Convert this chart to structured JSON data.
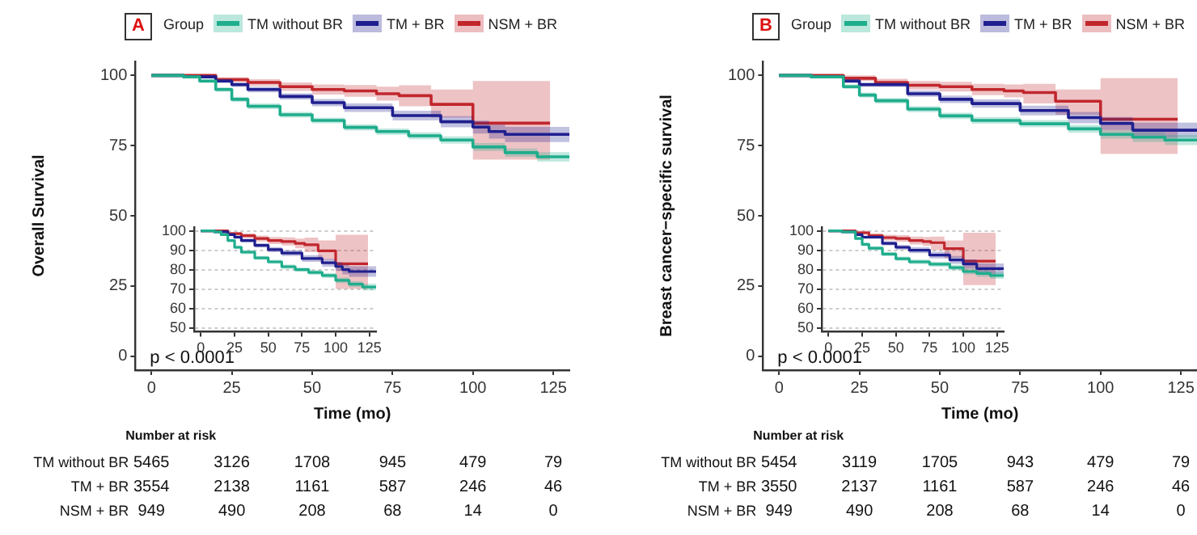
{
  "chart_data": [
    {
      "type": "step",
      "title": "A",
      "xlabel": "Time (mo)",
      "ylabel": "Overall Survival",
      "legend_title": "Group",
      "legend": "top",
      "grid": false,
      "annotations": [
        "p < 0.0001"
      ],
      "xlim": [
        -5,
        130
      ],
      "xticks": [
        0,
        25,
        50,
        75,
        100,
        125
      ],
      "ylim": [
        -5,
        105
      ],
      "yticks": [
        0,
        25,
        50,
        75,
        100
      ],
      "series": [
        {
          "name": "TM without BR",
          "color": "#1fae8c",
          "x": [
            0,
            10,
            15,
            20,
            25,
            30,
            40,
            50,
            60,
            70,
            80,
            90,
            100,
            110,
            120,
            130
          ],
          "values": [
            100,
            99.5,
            98,
            95,
            91.5,
            89,
            86,
            84,
            81.5,
            80,
            78.5,
            77,
            74.5,
            72.5,
            71,
            70.5
          ],
          "lower": [
            100,
            99,
            97.3,
            94.2,
            90.6,
            88,
            85,
            83,
            80.4,
            78.9,
            77.3,
            75.7,
            73.1,
            71,
            69.3,
            68.6
          ],
          "upper": [
            100,
            100,
            98.7,
            95.8,
            92.4,
            90,
            87,
            85,
            82.6,
            81.1,
            79.7,
            78.3,
            75.9,
            74,
            72.7,
            72.4
          ]
        },
        {
          "name": "TM + BR",
          "color": "#1f1f8f",
          "x": [
            0,
            10,
            20,
            25,
            30,
            40,
            50,
            60,
            75,
            90,
            100,
            105,
            110,
            130
          ],
          "values": [
            100,
            99.5,
            98,
            96.7,
            95,
            92.5,
            90.3,
            88.5,
            85.7,
            83.5,
            81.6,
            80,
            79,
            79
          ],
          "lower": [
            100,
            99,
            97.3,
            95.9,
            94,
            91.4,
            89,
            87,
            84,
            81.5,
            79.3,
            77.5,
            76.3,
            76.3
          ],
          "upper": [
            100,
            100,
            98.7,
            97.5,
            96,
            93.6,
            91.6,
            90,
            87.4,
            85.5,
            83.9,
            82.5,
            81.7,
            81.7
          ]
        },
        {
          "name": "NSM + BR",
          "color": "#c1272d",
          "x": [
            0,
            20,
            30,
            40,
            50,
            60,
            70,
            77,
            87,
            100,
            124
          ],
          "values": [
            100,
            98.5,
            97.5,
            96,
            95,
            94.5,
            93.5,
            92.8,
            89.7,
            83,
            83
          ],
          "lower": [
            100,
            97.6,
            96.3,
            94.5,
            93.2,
            92.4,
            91,
            89,
            85,
            70,
            70
          ],
          "upper": [
            100,
            99.4,
            98.7,
            97.5,
            96.8,
            96.6,
            96,
            96.5,
            95,
            98,
            98
          ]
        }
      ]
    },
    {
      "type": "step",
      "grid": "y",
      "xlim": [
        -5,
        130
      ],
      "xticks": [
        0,
        25,
        50,
        75,
        100,
        125
      ],
      "ylim": [
        48,
        102
      ],
      "yticks": [
        50,
        60,
        70,
        80,
        90,
        100
      ],
      "series": [
        {
          "color": "#1fae8c",
          "x": [
            0,
            10,
            15,
            20,
            25,
            30,
            40,
            50,
            60,
            70,
            80,
            90,
            100,
            110,
            120,
            130
          ],
          "values": [
            100,
            99.5,
            98,
            95,
            91.5,
            89,
            86,
            84,
            81.5,
            80,
            78.5,
            77,
            74.5,
            72.5,
            71,
            70.5
          ],
          "lower": [
            100,
            99,
            97.3,
            94.2,
            90.6,
            88,
            85,
            83,
            80.4,
            78.9,
            77.3,
            75.7,
            73.1,
            71,
            69.3,
            68.6
          ],
          "upper": [
            100,
            100,
            98.7,
            95.8,
            92.4,
            90,
            87,
            85,
            82.6,
            81.1,
            79.7,
            78.3,
            75.9,
            74,
            72.7,
            72.4
          ]
        },
        {
          "color": "#1f1f8f",
          "x": [
            0,
            10,
            20,
            25,
            30,
            40,
            50,
            60,
            75,
            90,
            100,
            105,
            110,
            130
          ],
          "values": [
            100,
            99.5,
            98,
            96.7,
            95,
            92.5,
            90.3,
            88.5,
            85.7,
            83.5,
            81.6,
            80,
            79,
            79
          ],
          "lower": [
            100,
            99,
            97.3,
            95.9,
            94,
            91.4,
            89,
            87,
            84,
            81.5,
            79.3,
            77.5,
            76.3,
            76.3
          ],
          "upper": [
            100,
            100,
            98.7,
            97.5,
            96,
            93.6,
            91.6,
            90,
            87.4,
            85.5,
            83.9,
            82.5,
            81.7,
            81.7
          ]
        },
        {
          "color": "#c1272d",
          "x": [
            0,
            20,
            30,
            40,
            50,
            60,
            70,
            77,
            87,
            100,
            124
          ],
          "values": [
            100,
            98.5,
            97.5,
            96,
            95,
            94.5,
            93.5,
            92.8,
            89.7,
            83,
            83
          ],
          "lower": [
            100,
            97.6,
            96.3,
            94.5,
            93.2,
            92.4,
            91,
            89,
            85,
            70,
            70
          ],
          "upper": [
            100,
            99.4,
            98.7,
            97.5,
            96.8,
            96.6,
            96,
            96.5,
            95,
            98,
            98
          ]
        }
      ]
    },
    {
      "type": "other",
      "title": "Number at risk",
      "annotations": [
        "TM without BR",
        "5465",
        "3126",
        "1708",
        "945",
        "479",
        "79",
        "TM + BR",
        "3554",
        "2138",
        "1161",
        "587",
        "246",
        "46",
        "NSM + BR",
        "949",
        "490",
        "208",
        "68",
        "14",
        "0"
      ]
    },
    {
      "type": "step",
      "title": "B",
      "xlabel": "Time (mo)",
      "ylabel": "Breast cancer−specific survival",
      "legend_title": "Group",
      "legend": "top",
      "grid": false,
      "annotations": [
        "p < 0.0001"
      ],
      "xlim": [
        -5,
        130
      ],
      "xticks": [
        0,
        25,
        50,
        75,
        100,
        125
      ],
      "ylim": [
        -5,
        105
      ],
      "yticks": [
        0,
        25,
        50,
        75,
        100
      ],
      "series": [
        {
          "name": "TM without BR",
          "color": "#1fae8c",
          "x": [
            0,
            10,
            20,
            25,
            30,
            40,
            50,
            60,
            75,
            90,
            100,
            110,
            120,
            130
          ],
          "values": [
            100,
            99.5,
            96,
            93,
            91,
            88,
            85.6,
            84,
            82.8,
            81,
            79,
            78,
            77,
            76.5
          ],
          "lower": [
            100,
            99,
            95.2,
            92.1,
            90,
            86.9,
            84.5,
            82.8,
            81.5,
            79.6,
            77.5,
            76.3,
            75.2,
            74.6
          ],
          "upper": [
            100,
            100,
            96.8,
            93.9,
            92,
            89.1,
            86.7,
            85.2,
            84.1,
            82.4,
            80.5,
            79.7,
            78.8,
            78.4
          ]
        },
        {
          "name": "TM + BR",
          "color": "#1f1f8f",
          "x": [
            0,
            10,
            20,
            25,
            40,
            50,
            60,
            75,
            90,
            100,
            110,
            130
          ],
          "values": [
            100,
            99.5,
            98,
            96.7,
            93.5,
            91.5,
            90,
            87.5,
            85,
            82.9,
            80.5,
            80.5
          ],
          "lower": [
            100,
            99,
            97.3,
            95.9,
            92.4,
            90.2,
            88.5,
            85.8,
            83,
            80.6,
            77.8,
            77.8
          ],
          "upper": [
            100,
            100,
            98.7,
            97.5,
            94.6,
            92.8,
            91.5,
            89.2,
            87,
            85.2,
            83.2,
            83.2
          ]
        },
        {
          "name": "NSM + BR",
          "color": "#c1272d",
          "x": [
            0,
            20,
            30,
            40,
            50,
            60,
            70,
            76,
            86,
            100,
            124
          ],
          "values": [
            100,
            99,
            97.5,
            96.5,
            96,
            95,
            94.5,
            93.9,
            90.8,
            84.4,
            84.4
          ],
          "lower": [
            100,
            98,
            96.2,
            95,
            94.3,
            93,
            92.2,
            90,
            86,
            72,
            72
          ],
          "upper": [
            100,
            100,
            98.8,
            98,
            97.7,
            97,
            96.8,
            97,
            95,
            99,
            99
          ]
        }
      ]
    },
    {
      "type": "step",
      "grid": "y",
      "xlim": [
        -5,
        130
      ],
      "xticks": [
        0,
        25,
        50,
        75,
        100,
        125
      ],
      "ylim": [
        48,
        102
      ],
      "yticks": [
        50,
        60,
        70,
        80,
        90,
        100
      ],
      "series": [
        {
          "color": "#1fae8c",
          "x": [
            0,
            10,
            20,
            25,
            30,
            40,
            50,
            60,
            75,
            90,
            100,
            110,
            120,
            130
          ],
          "values": [
            100,
            99.5,
            96,
            93,
            91,
            88,
            85.6,
            84,
            82.8,
            81,
            79,
            78,
            77,
            76.5
          ],
          "lower": [
            100,
            99,
            95.2,
            92.1,
            90,
            86.9,
            84.5,
            82.8,
            81.5,
            79.6,
            77.5,
            76.3,
            75.2,
            74.6
          ],
          "upper": [
            100,
            100,
            96.8,
            93.9,
            92,
            89.1,
            86.7,
            85.2,
            84.1,
            82.4,
            80.5,
            79.7,
            78.8,
            78.4
          ]
        },
        {
          "color": "#1f1f8f",
          "x": [
            0,
            10,
            20,
            25,
            40,
            50,
            60,
            75,
            90,
            100,
            110,
            130
          ],
          "values": [
            100,
            99.5,
            98,
            96.7,
            93.5,
            91.5,
            90,
            87.5,
            85,
            82.9,
            80.5,
            80.5
          ],
          "lower": [
            100,
            99,
            97.3,
            95.9,
            92.4,
            90.2,
            88.5,
            85.8,
            83,
            80.6,
            77.8,
            77.8
          ],
          "upper": [
            100,
            100,
            98.7,
            97.5,
            94.6,
            92.8,
            91.5,
            89.2,
            87,
            85.2,
            83.2,
            83.2
          ]
        },
        {
          "color": "#c1272d",
          "x": [
            0,
            20,
            30,
            40,
            50,
            60,
            70,
            76,
            86,
            100,
            124
          ],
          "values": [
            100,
            99,
            97.5,
            96.5,
            96,
            95,
            94.5,
            93.9,
            90.8,
            84.4,
            84.4
          ],
          "lower": [
            100,
            98,
            96.2,
            95,
            94.3,
            93,
            92.2,
            90,
            86,
            72,
            72
          ],
          "upper": [
            100,
            100,
            98.8,
            98,
            97.7,
            97,
            96.8,
            97,
            95,
            99,
            99
          ]
        }
      ]
    },
    {
      "type": "other",
      "title": "Number at risk",
      "annotations": [
        "TM without BR",
        "5454",
        "3119",
        "1705",
        "943",
        "479",
        "79",
        "TM + BR",
        "3550",
        "2137",
        "1161",
        "587",
        "246",
        "46",
        "NSM + BR",
        "949",
        "490",
        "208",
        "68",
        "14",
        "0"
      ]
    }
  ]
}
